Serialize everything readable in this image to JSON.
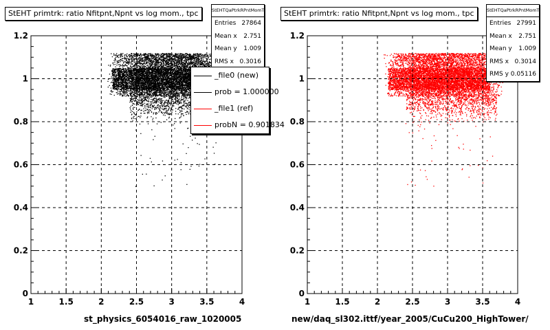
{
  "chart_data": [
    {
      "type": "scatter",
      "title": "StEHT primtrk: ratio Nfitpnt,Npnt vs log mom., tpc",
      "xlabel": "st_physics_6054016_raw_1020005",
      "ylabel": "",
      "xlim": [
        1,
        4
      ],
      "ylim": [
        0,
        1.2
      ],
      "x_ticks": [
        "1",
        "1.5",
        "2",
        "2.5",
        "3",
        "3.5",
        "4"
      ],
      "y_ticks": [
        "0",
        "0.2",
        "0.4",
        "0.6",
        "0.8",
        "1",
        "1.2"
      ],
      "grid": true,
      "color": "#000000",
      "point_cloud": {
        "x_range": [
          2.0,
          3.8
        ],
        "dense_band_y": [
          0.92,
          1.12
        ],
        "core_y": [
          0.95,
          1.05
        ],
        "sparse_tail_y_min": 0.5
      },
      "stats": {
        "title": "StEHTQaPtrkRPntMomT",
        "rows": [
          {
            "label": "Entries",
            "value": "27864"
          },
          {
            "label": "Mean x",
            "value": "2.751"
          },
          {
            "label": "Mean y",
            "value": "1.009"
          },
          {
            "label": "RMS x",
            "value": "0.3016"
          }
        ]
      },
      "legend": {
        "placement": "right",
        "entries": [
          {
            "label": "_file0 (new)",
            "color": "#000000"
          },
          {
            "label": "prob = 1.000000",
            "color": "#000000"
          },
          {
            "label": "_file1 (ref)",
            "color": "#ff0000"
          },
          {
            "label": "probN = 0.901834",
            "color": "#ff0000"
          }
        ]
      }
    },
    {
      "type": "scatter",
      "title": "StEHT primtrk: ratio Nfitpnt,Npnt vs log mom., tpc",
      "xlabel": "new/daq_sl302.ittf/year_2005/CuCu200_HighTower/",
      "ylabel": "",
      "xlim": [
        1,
        4
      ],
      "ylim": [
        0,
        1.2
      ],
      "x_ticks": [
        "1",
        "1.5",
        "2",
        "2.5",
        "3",
        "3.5",
        "4"
      ],
      "y_ticks": [
        "0",
        "0.2",
        "0.4",
        "0.6",
        "0.8",
        "1",
        "1.2"
      ],
      "grid": true,
      "color": "#ff0000",
      "point_cloud": {
        "x_range": [
          2.0,
          3.8
        ],
        "dense_band_y": [
          0.92,
          1.12
        ],
        "core_y": [
          0.95,
          1.05
        ],
        "sparse_tail_y_min": 0.5
      },
      "stats": {
        "title": "StEHTQaPtrkRPntMomT",
        "rows": [
          {
            "label": "Entries",
            "value": "27991"
          },
          {
            "label": "Mean x",
            "value": "2.751"
          },
          {
            "label": "Mean y",
            "value": "1.009"
          },
          {
            "label": "RMS x",
            "value": "0.3014"
          },
          {
            "label": "RMS y",
            "value": "0.05116"
          }
        ]
      }
    }
  ]
}
